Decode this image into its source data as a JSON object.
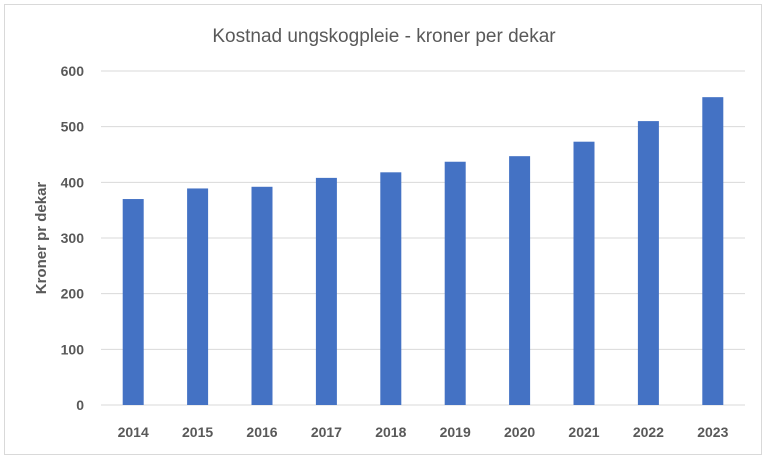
{
  "chart_data": {
    "type": "bar",
    "title": "Kostnad ungskogpleie - kroner per dekar",
    "xlabel": "",
    "ylabel": "Kroner pr dekar",
    "categories": [
      "2014",
      "2015",
      "2016",
      "2017",
      "2018",
      "2019",
      "2020",
      "2021",
      "2022",
      "2023"
    ],
    "values": [
      370,
      389,
      392,
      408,
      418,
      437,
      447,
      473,
      510,
      553
    ],
    "ylim": [
      0,
      600
    ],
    "yticks": [
      "0",
      "100",
      "200",
      "300",
      "400",
      "500",
      "600"
    ],
    "grid": true,
    "legend": "none",
    "bar_color": "#4472c4"
  }
}
